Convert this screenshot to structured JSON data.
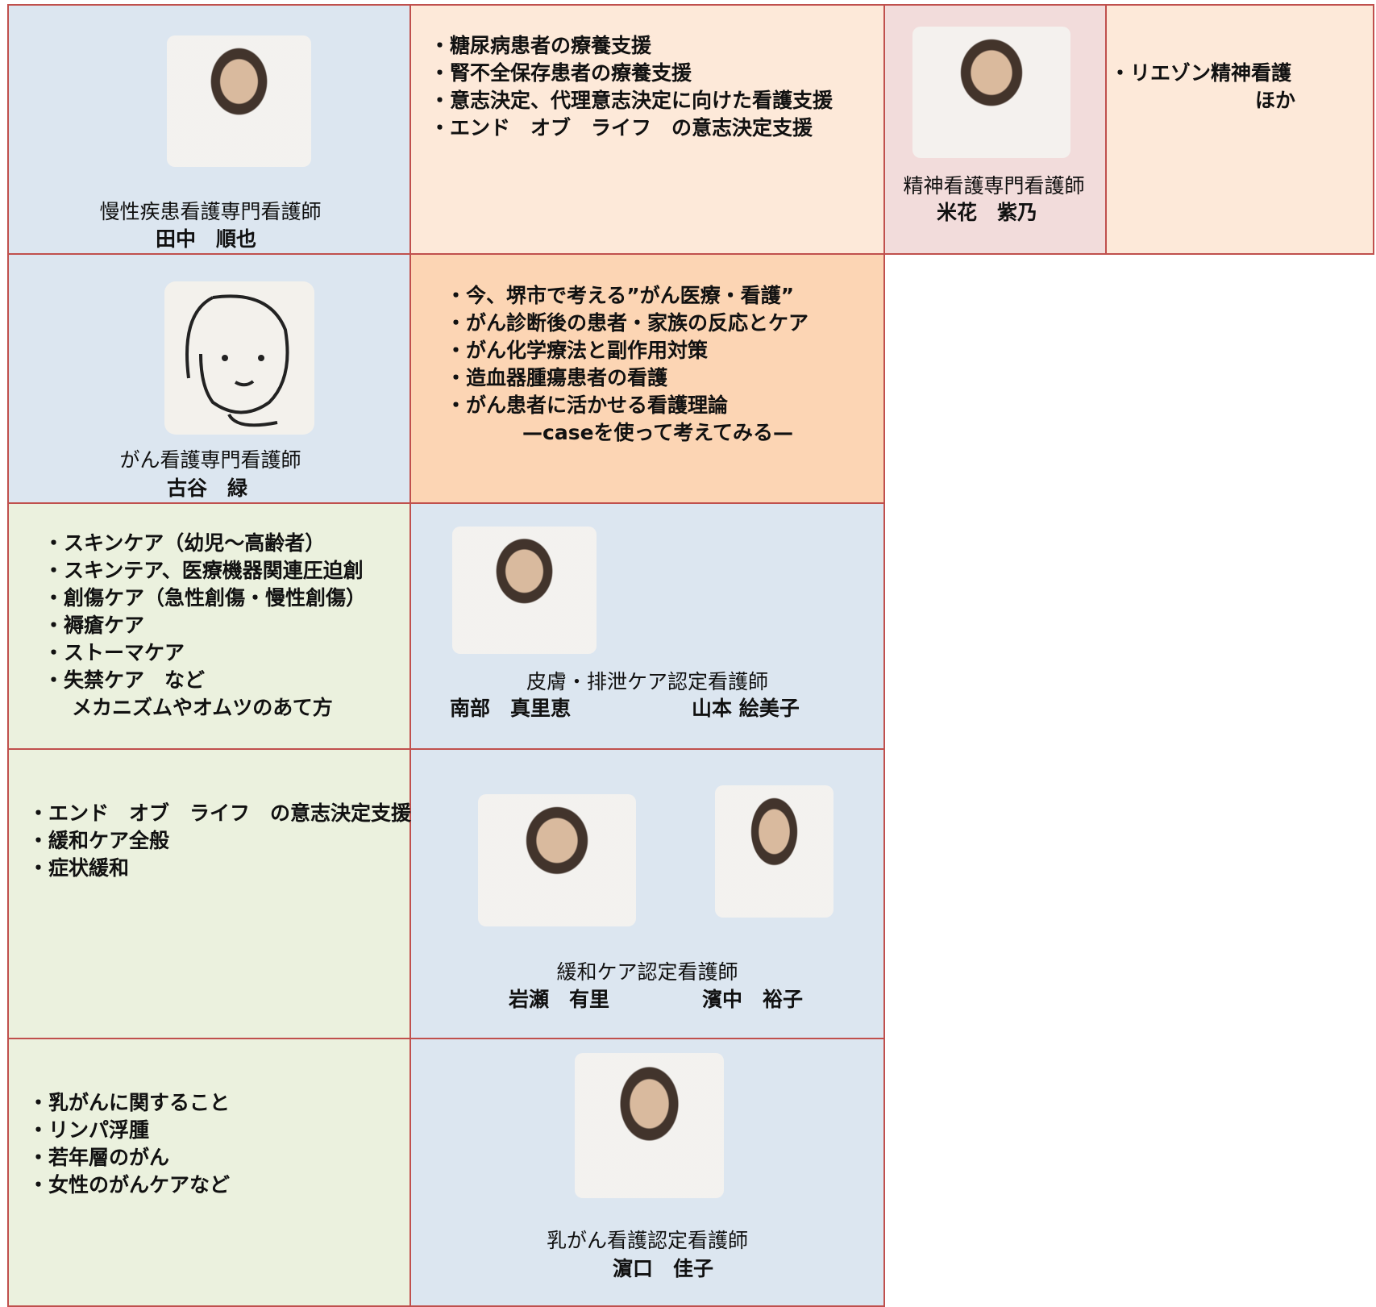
{
  "rows": [
    {
      "specialist": {
        "role": "慢性疾患看護専門看護師",
        "names": [
          "田中　順也"
        ]
      },
      "topics": [
        "・糖尿病患者の療養支援",
        "・腎不全保存患者の療養支援",
        "・意志決定、代理意志決定に向けた看護支援",
        "・エンド　オブ　ライフ　の意志決定支援"
      ]
    },
    {
      "specialist": {
        "role": "がん看護専門看護師",
        "names": [
          "古谷　緑"
        ]
      },
      "topics": [
        "・今、堺市で考える”がん医療・看護”",
        "・がん診断後の患者・家族の反応とケア",
        "・がん化学療法と副作用対策",
        "・造血器腫瘍患者の看護",
        "・がん患者に活かせる看護理論",
        "—caseを使って考えてみる—"
      ]
    },
    {
      "specialist": {
        "role": "皮膚・排泄ケア認定看護師",
        "names": [
          "南部　真里恵",
          "山本 絵美子"
        ]
      },
      "topics": [
        "・スキンケア（幼児～高齢者）",
        "・スキンテア、医療機器関連圧迫創",
        "・創傷ケア（急性創傷・慢性創傷）",
        "・褥瘡ケア",
        "・ストーマケア",
        "・失禁ケア　など",
        "メカニズムやオムツのあて方"
      ]
    },
    {
      "specialist": {
        "role": "緩和ケア認定看護師",
        "names": [
          "岩瀬　有里",
          "濱中　裕子"
        ]
      },
      "topics": [
        "・エンド　オブ　ライフ　の意志決定支援",
        "・緩和ケア全般",
        "・症状緩和"
      ]
    },
    {
      "specialist": {
        "role": "乳がん看護認定看護師",
        "names": [
          "濵口　佳子"
        ]
      },
      "topics": [
        "・乳がんに関すること",
        "・リンパ浮腫",
        "・若年層のがん",
        "・女性のがんケアなど"
      ]
    }
  ],
  "side": {
    "specialist": {
      "role": "精神看護専門看護師",
      "names": [
        "米花　紫乃"
      ]
    },
    "topics": [
      "・リエゾン精神看護",
      "ほか"
    ]
  }
}
